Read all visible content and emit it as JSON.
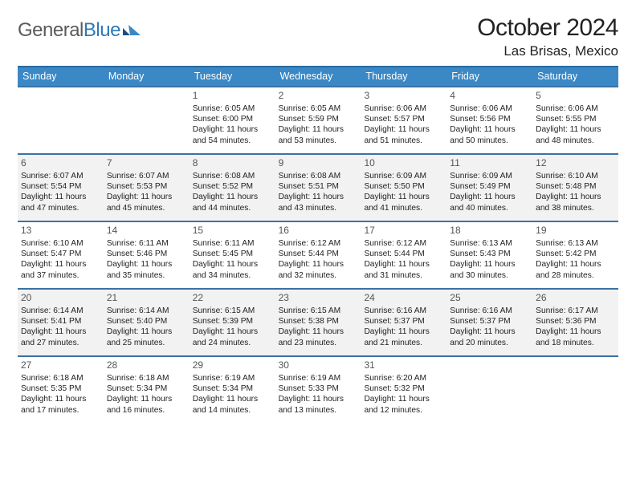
{
  "logo": {
    "part1": "General",
    "part2": "Blue"
  },
  "title": "October 2024",
  "location": "Las Brisas, Mexico",
  "colors": {
    "header_bg": "#3a88c6",
    "header_border_top": "#2a6aa0",
    "week_border": "#3a72a5",
    "alt_row_bg": "#f2f2f2",
    "text": "#222222",
    "logo_gray": "#5a5a5a",
    "logo_blue": "#2f78b7"
  },
  "typography": {
    "title_fontsize": 30,
    "location_fontsize": 17,
    "dayheader_fontsize": 12.5,
    "daynum_fontsize": 12,
    "cell_fontsize": 10.2
  },
  "day_headers": [
    "Sunday",
    "Monday",
    "Tuesday",
    "Wednesday",
    "Thursday",
    "Friday",
    "Saturday"
  ],
  "weeks": [
    [
      {
        "n": "",
        "sunrise": "",
        "sunset": "",
        "daylight": ""
      },
      {
        "n": "",
        "sunrise": "",
        "sunset": "",
        "daylight": ""
      },
      {
        "n": "1",
        "sunrise": "Sunrise: 6:05 AM",
        "sunset": "Sunset: 6:00 PM",
        "daylight": "Daylight: 11 hours and 54 minutes."
      },
      {
        "n": "2",
        "sunrise": "Sunrise: 6:05 AM",
        "sunset": "Sunset: 5:59 PM",
        "daylight": "Daylight: 11 hours and 53 minutes."
      },
      {
        "n": "3",
        "sunrise": "Sunrise: 6:06 AM",
        "sunset": "Sunset: 5:57 PM",
        "daylight": "Daylight: 11 hours and 51 minutes."
      },
      {
        "n": "4",
        "sunrise": "Sunrise: 6:06 AM",
        "sunset": "Sunset: 5:56 PM",
        "daylight": "Daylight: 11 hours and 50 minutes."
      },
      {
        "n": "5",
        "sunrise": "Sunrise: 6:06 AM",
        "sunset": "Sunset: 5:55 PM",
        "daylight": "Daylight: 11 hours and 48 minutes."
      }
    ],
    [
      {
        "n": "6",
        "sunrise": "Sunrise: 6:07 AM",
        "sunset": "Sunset: 5:54 PM",
        "daylight": "Daylight: 11 hours and 47 minutes."
      },
      {
        "n": "7",
        "sunrise": "Sunrise: 6:07 AM",
        "sunset": "Sunset: 5:53 PM",
        "daylight": "Daylight: 11 hours and 45 minutes."
      },
      {
        "n": "8",
        "sunrise": "Sunrise: 6:08 AM",
        "sunset": "Sunset: 5:52 PM",
        "daylight": "Daylight: 11 hours and 44 minutes."
      },
      {
        "n": "9",
        "sunrise": "Sunrise: 6:08 AM",
        "sunset": "Sunset: 5:51 PM",
        "daylight": "Daylight: 11 hours and 43 minutes."
      },
      {
        "n": "10",
        "sunrise": "Sunrise: 6:09 AM",
        "sunset": "Sunset: 5:50 PM",
        "daylight": "Daylight: 11 hours and 41 minutes."
      },
      {
        "n": "11",
        "sunrise": "Sunrise: 6:09 AM",
        "sunset": "Sunset: 5:49 PM",
        "daylight": "Daylight: 11 hours and 40 minutes."
      },
      {
        "n": "12",
        "sunrise": "Sunrise: 6:10 AM",
        "sunset": "Sunset: 5:48 PM",
        "daylight": "Daylight: 11 hours and 38 minutes."
      }
    ],
    [
      {
        "n": "13",
        "sunrise": "Sunrise: 6:10 AM",
        "sunset": "Sunset: 5:47 PM",
        "daylight": "Daylight: 11 hours and 37 minutes."
      },
      {
        "n": "14",
        "sunrise": "Sunrise: 6:11 AM",
        "sunset": "Sunset: 5:46 PM",
        "daylight": "Daylight: 11 hours and 35 minutes."
      },
      {
        "n": "15",
        "sunrise": "Sunrise: 6:11 AM",
        "sunset": "Sunset: 5:45 PM",
        "daylight": "Daylight: 11 hours and 34 minutes."
      },
      {
        "n": "16",
        "sunrise": "Sunrise: 6:12 AM",
        "sunset": "Sunset: 5:44 PM",
        "daylight": "Daylight: 11 hours and 32 minutes."
      },
      {
        "n": "17",
        "sunrise": "Sunrise: 6:12 AM",
        "sunset": "Sunset: 5:44 PM",
        "daylight": "Daylight: 11 hours and 31 minutes."
      },
      {
        "n": "18",
        "sunrise": "Sunrise: 6:13 AM",
        "sunset": "Sunset: 5:43 PM",
        "daylight": "Daylight: 11 hours and 30 minutes."
      },
      {
        "n": "19",
        "sunrise": "Sunrise: 6:13 AM",
        "sunset": "Sunset: 5:42 PM",
        "daylight": "Daylight: 11 hours and 28 minutes."
      }
    ],
    [
      {
        "n": "20",
        "sunrise": "Sunrise: 6:14 AM",
        "sunset": "Sunset: 5:41 PM",
        "daylight": "Daylight: 11 hours and 27 minutes."
      },
      {
        "n": "21",
        "sunrise": "Sunrise: 6:14 AM",
        "sunset": "Sunset: 5:40 PM",
        "daylight": "Daylight: 11 hours and 25 minutes."
      },
      {
        "n": "22",
        "sunrise": "Sunrise: 6:15 AM",
        "sunset": "Sunset: 5:39 PM",
        "daylight": "Daylight: 11 hours and 24 minutes."
      },
      {
        "n": "23",
        "sunrise": "Sunrise: 6:15 AM",
        "sunset": "Sunset: 5:38 PM",
        "daylight": "Daylight: 11 hours and 23 minutes."
      },
      {
        "n": "24",
        "sunrise": "Sunrise: 6:16 AM",
        "sunset": "Sunset: 5:37 PM",
        "daylight": "Daylight: 11 hours and 21 minutes."
      },
      {
        "n": "25",
        "sunrise": "Sunrise: 6:16 AM",
        "sunset": "Sunset: 5:37 PM",
        "daylight": "Daylight: 11 hours and 20 minutes."
      },
      {
        "n": "26",
        "sunrise": "Sunrise: 6:17 AM",
        "sunset": "Sunset: 5:36 PM",
        "daylight": "Daylight: 11 hours and 18 minutes."
      }
    ],
    [
      {
        "n": "27",
        "sunrise": "Sunrise: 6:18 AM",
        "sunset": "Sunset: 5:35 PM",
        "daylight": "Daylight: 11 hours and 17 minutes."
      },
      {
        "n": "28",
        "sunrise": "Sunrise: 6:18 AM",
        "sunset": "Sunset: 5:34 PM",
        "daylight": "Daylight: 11 hours and 16 minutes."
      },
      {
        "n": "29",
        "sunrise": "Sunrise: 6:19 AM",
        "sunset": "Sunset: 5:34 PM",
        "daylight": "Daylight: 11 hours and 14 minutes."
      },
      {
        "n": "30",
        "sunrise": "Sunrise: 6:19 AM",
        "sunset": "Sunset: 5:33 PM",
        "daylight": "Daylight: 11 hours and 13 minutes."
      },
      {
        "n": "31",
        "sunrise": "Sunrise: 6:20 AM",
        "sunset": "Sunset: 5:32 PM",
        "daylight": "Daylight: 11 hours and 12 minutes."
      },
      {
        "n": "",
        "sunrise": "",
        "sunset": "",
        "daylight": ""
      },
      {
        "n": "",
        "sunrise": "",
        "sunset": "",
        "daylight": ""
      }
    ]
  ]
}
